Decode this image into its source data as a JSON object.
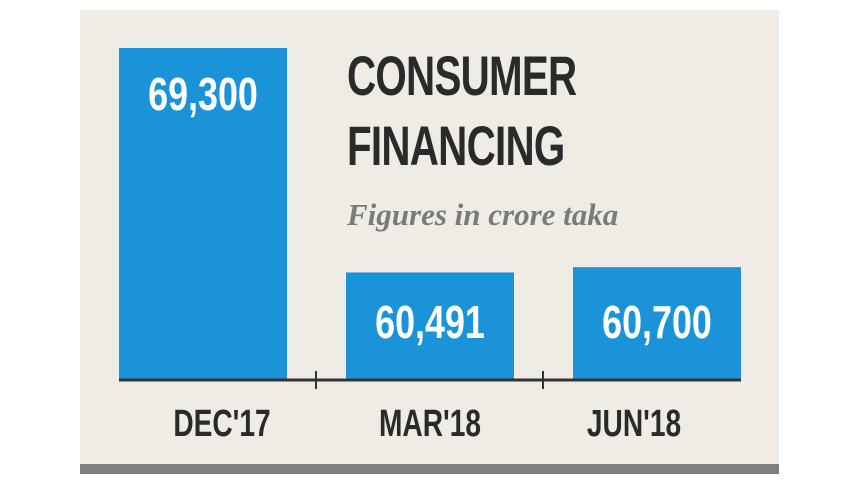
{
  "colors": {
    "bar": "#1a93d9",
    "value_text": "#ffffff",
    "axis": "#333333",
    "label_text": "#2a2a2a",
    "background": "#efece6",
    "bottom_bar": "#7e7f81"
  },
  "title_lines": [
    "CONSUMER",
    "FINANCING"
  ],
  "subtitle": "Figures in crore taka",
  "chart_data": {
    "type": "bar",
    "title": "CONSUMER FINANCING",
    "subtitle": "Figures in crore taka",
    "categories": [
      "DEC'17",
      "MAR'18",
      "JUN'18"
    ],
    "values": [
      69300,
      60491,
      60700
    ],
    "value_labels": [
      "69,300",
      "60,491",
      "60,700"
    ],
    "xlabel": "",
    "ylabel": "",
    "grid": false,
    "legend": "none"
  }
}
